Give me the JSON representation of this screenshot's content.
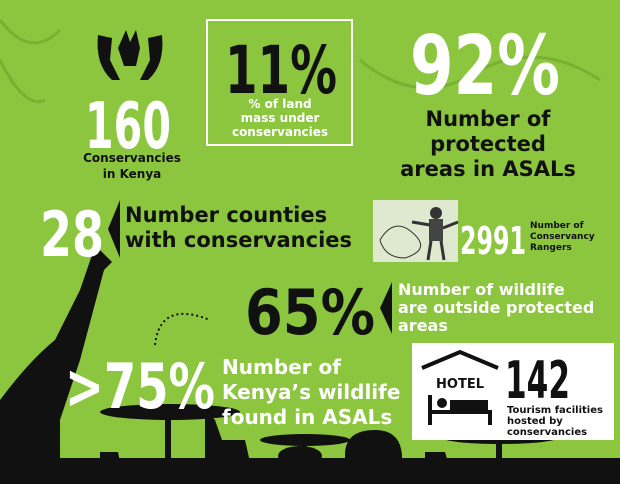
{
  "stats": [
    {
      "value": "160",
      "lines": [
        "Conservancies",
        "in Kenya"
      ]
    },
    {
      "value": "11%",
      "lines": [
        "% of land",
        "mass under",
        "conservancies"
      ]
    },
    {
      "value": "92%",
      "lines": [
        "Number of",
        "protected",
        "areas in ASALs"
      ]
    },
    {
      "value": "28",
      "lines": [
        "Number counties",
        "with conservancies"
      ]
    },
    {
      "value": "2991",
      "lines": [
        "Number of",
        "Conservancy",
        "Rangers"
      ]
    },
    {
      "value": "65%",
      "lines": [
        "Number of wildlife",
        "are outside protected",
        "areas"
      ]
    },
    {
      "value": ">75%",
      "lines": [
        "Number of",
        "Kenya’s wildlife",
        "found in ASALs"
      ]
    },
    {
      "value": "142",
      "lines": [
        "Tourism facilities",
        "hosted by",
        "conservancies"
      ],
      "sign": "HOTEL"
    }
  ]
}
